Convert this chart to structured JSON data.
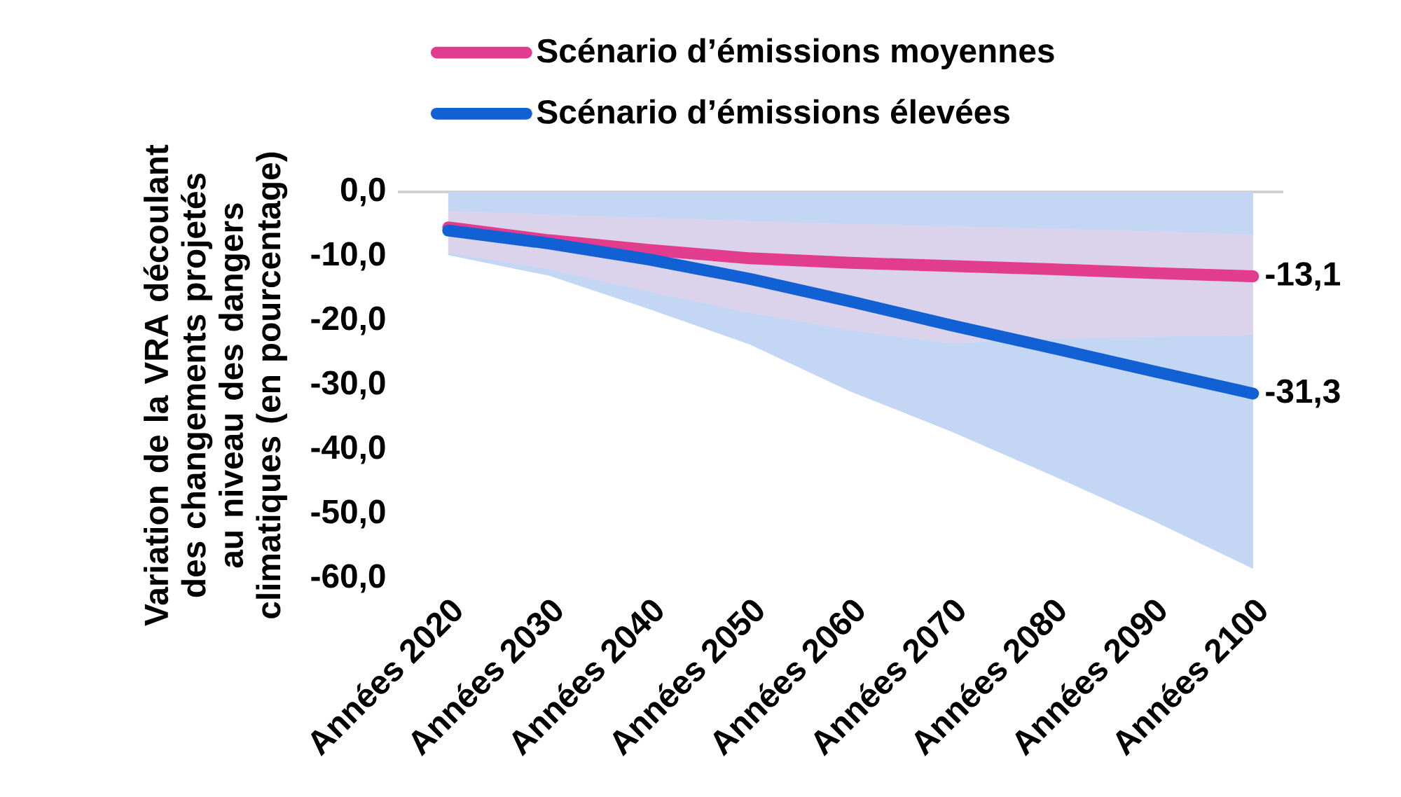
{
  "chart_data": {
    "type": "line",
    "ylabel": "Variation de la VRA découlant des changements projetés au niveau des dangers climatiques (en pourcentage)",
    "categories": [
      "Années 2020",
      "Années 2030",
      "Années 2040",
      "Années 2050",
      "Années 2060",
      "Années 2070",
      "Années 2080",
      "Années 2090",
      "Années 2100"
    ],
    "ylim": [
      -60,
      0
    ],
    "yticks": [
      {
        "value": 0,
        "label": "0,0"
      },
      {
        "value": -10,
        "label": "-10,0"
      },
      {
        "value": -20,
        "label": "-20,0"
      },
      {
        "value": -30,
        "label": "-30,0"
      },
      {
        "value": -40,
        "label": "-40,0"
      },
      {
        "value": -50,
        "label": "-50,0"
      },
      {
        "value": -60,
        "label": "-60,0"
      }
    ],
    "legend": "top",
    "series": [
      {
        "name": "Scénario d’émissions moyennes",
        "color": "#e23c8f",
        "values": [
          -5.5,
          -7.5,
          -9,
          -10.3,
          -11,
          -11.5,
          -12,
          -12.6,
          -13.1
        ],
        "lower": [
          -9.5,
          -12,
          -15.5,
          -18.8,
          -21.5,
          -23.5,
          -22.8,
          -22.5,
          -22.2
        ],
        "upper": [
          -3,
          -3.5,
          -4,
          -4.5,
          -5,
          -5.3,
          -5.7,
          -6.1,
          -6.6
        ],
        "value_labels": [
          null,
          null,
          null,
          null,
          null,
          null,
          null,
          null,
          "-13,1"
        ]
      },
      {
        "name": "Scénario d’émissions élevées",
        "color": "#1160d4",
        "values": [
          -6,
          -8,
          -10.5,
          -13.5,
          -17,
          -20.7,
          -24.2,
          -27.8,
          -31.3
        ],
        "lower": [
          -9.8,
          -13,
          -18.2,
          -23.7,
          -31,
          -37.2,
          -44,
          -51,
          -58.5
        ],
        "upper": [
          0,
          0,
          0,
          0,
          0,
          0,
          0,
          0,
          0
        ],
        "value_labels": [
          null,
          null,
          null,
          null,
          null,
          null,
          null,
          null,
          "-31,3"
        ]
      }
    ]
  }
}
